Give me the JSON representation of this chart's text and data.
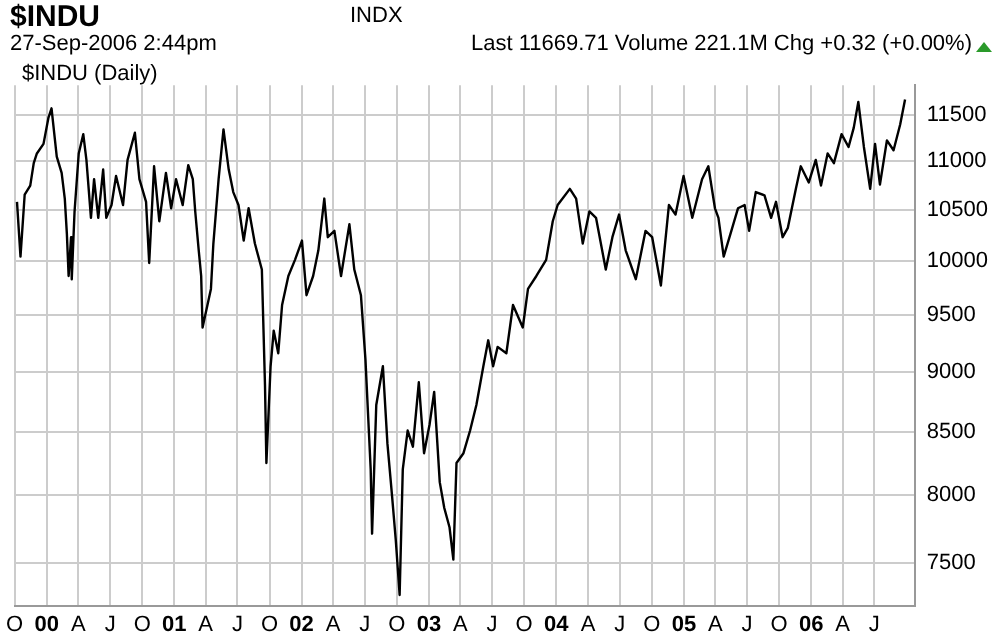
{
  "chart_data": {
    "type": "line",
    "title": "$INDU",
    "annotations": [
      "INDX",
      "27-Sep-2006 2:44pm",
      "Last 11669.71 Volume 221.1M Chg +0.32 (+0.00%)",
      "$INDU (Daily)"
    ],
    "log": "y",
    "grid": true,
    "legend": false,
    "marker": "none",
    "line_style": "solid",
    "xlim": [
      "1999-10-01",
      "2006-10-25"
    ],
    "xticks": [
      {
        "value": "1999-10",
        "label": "O"
      },
      {
        "value": "2000-01",
        "label": "00"
      },
      {
        "value": "2000-04",
        "label": "A"
      },
      {
        "value": "2000-07",
        "label": "J"
      },
      {
        "value": "2000-10",
        "label": "O"
      },
      {
        "value": "2001-01",
        "label": "01"
      },
      {
        "value": "2001-04",
        "label": "A"
      },
      {
        "value": "2001-07",
        "label": "J"
      },
      {
        "value": "2001-10",
        "label": "O"
      },
      {
        "value": "2002-01",
        "label": "02"
      },
      {
        "value": "2002-04",
        "label": "A"
      },
      {
        "value": "2002-07",
        "label": "J"
      },
      {
        "value": "2002-10",
        "label": "O"
      },
      {
        "value": "2003-01",
        "label": "03"
      },
      {
        "value": "2003-04",
        "label": "A"
      },
      {
        "value": "2003-07",
        "label": "J"
      },
      {
        "value": "2003-10",
        "label": "O"
      },
      {
        "value": "2004-01",
        "label": "04"
      },
      {
        "value": "2004-04",
        "label": "A"
      },
      {
        "value": "2004-07",
        "label": "J"
      },
      {
        "value": "2004-10",
        "label": "O"
      },
      {
        "value": "2005-01",
        "label": "05"
      },
      {
        "value": "2005-04",
        "label": "A"
      },
      {
        "value": "2005-07",
        "label": "J"
      },
      {
        "value": "2005-10",
        "label": "O"
      },
      {
        "value": "2006-01",
        "label": "06"
      },
      {
        "value": "2006-04",
        "label": "A"
      },
      {
        "value": "2006-07",
        "label": "J"
      }
    ],
    "ylim": [
      7200,
      11830
    ],
    "yticks": [
      7500,
      8000,
      8500,
      9000,
      9500,
      10000,
      10500,
      11000,
      11500
    ],
    "x": [
      "1999-10-08",
      "1999-10-18",
      "1999-10-30",
      "1999-11-15",
      "1999-11-25",
      "1999-12-04",
      "1999-12-23",
      "2000-01-06",
      "2000-01-15",
      "2000-01-30",
      "2000-02-13",
      "2000-02-22",
      "2000-02-28",
      "2000-03-04",
      "2000-03-11",
      "2000-03-13",
      "2000-03-21",
      "2000-04-02",
      "2000-04-15",
      "2000-04-24",
      "2000-05-07",
      "2000-05-16",
      "2000-05-28",
      "2000-06-11",
      "2000-06-20",
      "2000-07-05",
      "2000-07-18",
      "2000-08-07",
      "2000-08-20",
      "2000-09-10",
      "2000-09-23",
      "2000-10-12",
      "2000-10-21",
      "2000-11-04",
      "2000-11-19",
      "2000-12-08",
      "2000-12-23",
      "2001-01-06",
      "2001-01-25",
      "2001-02-10",
      "2001-02-23",
      "2001-03-02",
      "2001-03-12",
      "2001-03-19",
      "2001-03-23",
      "2001-04-16",
      "2001-04-23",
      "2001-05-08",
      "2001-05-22",
      "2001-06-06",
      "2001-06-19",
      "2001-07-04",
      "2001-07-19",
      "2001-08-02",
      "2001-08-20",
      "2001-09-09",
      "2001-09-18",
      "2001-09-22",
      "2001-10-04",
      "2001-10-13",
      "2001-10-26",
      "2001-11-06",
      "2001-11-24",
      "2001-12-13",
      "2002-01-02",
      "2002-01-15",
      "2002-02-03",
      "2002-02-18",
      "2002-03-07",
      "2002-03-17",
      "2002-04-05",
      "2002-04-24",
      "2002-05-18",
      "2002-06-01",
      "2002-06-20",
      "2002-07-03",
      "2002-07-18",
      "2002-07-22",
      "2002-08-03",
      "2002-08-22",
      "2002-09-04",
      "2002-09-17",
      "2002-09-28",
      "2002-10-09",
      "2002-10-18",
      "2002-11-01",
      "2002-11-16",
      "2002-12-03",
      "2002-12-18",
      "2003-01-03",
      "2003-01-16",
      "2003-02-01",
      "2003-02-14",
      "2003-03-01",
      "2003-03-12",
      "2003-03-21",
      "2003-04-10",
      "2003-04-29",
      "2003-05-17",
      "2003-06-06",
      "2003-06-20",
      "2003-07-04",
      "2003-07-17",
      "2003-08-11",
      "2003-08-30",
      "2003-09-27",
      "2003-10-12",
      "2003-11-05",
      "2003-12-03",
      "2003-12-22",
      "2004-01-05",
      "2004-02-09",
      "2004-02-27",
      "2004-03-17",
      "2004-04-05",
      "2004-04-24",
      "2004-05-22",
      "2004-06-10",
      "2004-06-29",
      "2004-07-18",
      "2004-08-16",
      "2004-09-13",
      "2004-10-02",
      "2004-10-27",
      "2004-11-19",
      "2004-12-08",
      "2004-12-31",
      "2005-01-25",
      "2005-02-22",
      "2005-03-12",
      "2005-03-31",
      "2005-04-10",
      "2005-04-25",
      "2005-05-17",
      "2005-06-05",
      "2005-06-24",
      "2005-07-07",
      "2005-07-26",
      "2005-08-20",
      "2005-09-08",
      "2005-09-22",
      "2005-10-11",
      "2005-10-26",
      "2005-11-18",
      "2005-12-02",
      "2005-12-25",
      "2006-01-14",
      "2006-01-29",
      "2006-02-17",
      "2006-03-07",
      "2006-03-29",
      "2006-04-18",
      "2006-05-03",
      "2006-05-16",
      "2006-06-01",
      "2006-06-19",
      "2006-07-03",
      "2006-07-17",
      "2006-08-06",
      "2006-08-25",
      "2006-09-13",
      "2006-09-27"
    ],
    "series": [
      {
        "color": "#000000",
        "values": [
          10584,
          10045,
          10656,
          10749,
          10982,
          11084,
          11186,
          11466,
          11572,
          11050,
          10880,
          10617,
          10265,
          9861,
          10233,
          9831,
          10487,
          11084,
          11290,
          11016,
          10424,
          10815,
          10424,
          10915,
          10424,
          10552,
          10849,
          10552,
          11016,
          11305,
          10815,
          10584,
          9984,
          10949,
          10390,
          10880,
          10519,
          10815,
          10552,
          10961,
          10815,
          10487,
          10106,
          9861,
          9388,
          9740,
          10171,
          10815,
          11341,
          10915,
          10683,
          10552,
          10200,
          10519,
          10171,
          9922,
          8883,
          8250,
          9047,
          9360,
          9160,
          9592,
          9861,
          10014,
          10200,
          9682,
          9861,
          10106,
          10617,
          10233,
          10295,
          9861,
          10360,
          9922,
          9682,
          9105,
          8199,
          7712,
          8719,
          9047,
          8403,
          8002,
          7663,
          7273,
          8199,
          8509,
          8379,
          8910,
          8327,
          8561,
          8829,
          8100,
          7903,
          7759,
          7523,
          8250,
          8327,
          8509,
          8719,
          9047,
          9274,
          9047,
          9216,
          9160,
          9592,
          9388,
          9740,
          9861,
          10014,
          10390,
          10552,
          10716,
          10617,
          10171,
          10487,
          10424,
          9922,
          10233,
          10456,
          10106,
          9831,
          10295,
          10233,
          9772,
          10552,
          10456,
          10849,
          10424,
          10815,
          10949,
          10519,
          10424,
          10045,
          10295,
          10519,
          10552,
          10295,
          10683,
          10650,
          10424,
          10584,
          10233,
          10325,
          10716,
          10949,
          10782,
          11016,
          10749,
          11084,
          10982,
          11290,
          11153,
          11361,
          11643,
          11153,
          10716,
          11186,
          10760,
          11223,
          11118,
          11394,
          11670
        ]
      }
    ]
  }
}
